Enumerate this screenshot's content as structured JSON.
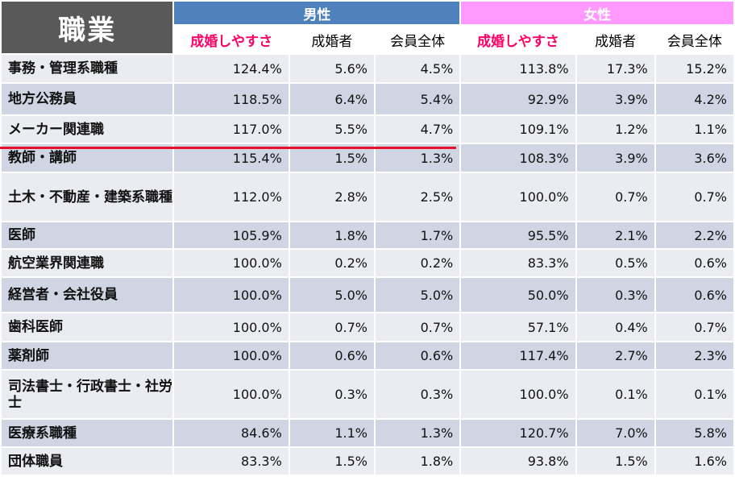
{
  "header": {
    "corner_label": "職業",
    "male_group": "男性",
    "female_group": "女性",
    "columns": [
      "成婚しやすさ",
      "成婚者",
      "会員全体",
      "成婚しやすさ",
      "成婚者",
      "会員全体"
    ]
  },
  "rows": [
    {
      "name": "事務・管理系職種",
      "values": [
        "124.4%",
        "5.6%",
        "4.5%",
        "113.8%",
        "17.3%",
        "15.2%"
      ]
    },
    {
      "name": "地方公務員",
      "values": [
        "118.5%",
        "6.4%",
        "5.4%",
        "92.9%",
        "3.9%",
        "4.2%"
      ]
    },
    {
      "name": "メーカー関連職",
      "values": [
        "117.0%",
        "5.5%",
        "4.7%",
        "109.1%",
        "1.2%",
        "1.1%"
      ]
    },
    {
      "name": "教師・講師",
      "values": [
        "115.4%",
        "1.5%",
        "1.3%",
        "108.3%",
        "3.9%",
        "3.6%"
      ]
    },
    {
      "name": "土木・不動産・建築系職種",
      "values": [
        "112.0%",
        "2.8%",
        "2.5%",
        "100.0%",
        "0.7%",
        "0.7%"
      ]
    },
    {
      "name": "医師",
      "values": [
        "105.9%",
        "1.8%",
        "1.7%",
        "95.5%",
        "2.1%",
        "2.2%"
      ]
    },
    {
      "name": "航空業界関連職",
      "values": [
        "100.0%",
        "0.2%",
        "0.2%",
        "83.3%",
        "0.5%",
        "0.6%"
      ]
    },
    {
      "name": "経営者・会社役員",
      "values": [
        "100.0%",
        "5.0%",
        "5.0%",
        "50.0%",
        "0.3%",
        "0.6%"
      ]
    },
    {
      "name": "歯科医師",
      "values": [
        "100.0%",
        "0.7%",
        "0.7%",
        "57.1%",
        "0.4%",
        "0.7%"
      ]
    },
    {
      "name": "薬剤師",
      "values": [
        "100.0%",
        "0.6%",
        "0.6%",
        "117.4%",
        "2.7%",
        "2.3%"
      ]
    },
    {
      "name": "司法書士・行政書士・社労士",
      "values": [
        "100.0%",
        "0.3%",
        "0.3%",
        "100.0%",
        "0.1%",
        "0.1%"
      ]
    },
    {
      "name": "医療系職種",
      "values": [
        "84.6%",
        "1.1%",
        "1.3%",
        "120.7%",
        "7.0%",
        "5.8%"
      ]
    },
    {
      "name": "団体職員",
      "values": [
        "83.3%",
        "1.5%",
        "1.8%",
        "93.8%",
        "1.5%",
        "1.6%"
      ]
    }
  ],
  "colors": {
    "male_header": "#4f81bd",
    "female_header": "#ff99ff",
    "emphasis_text": "#ff0066",
    "highlight_underline": "#e8102a"
  }
}
